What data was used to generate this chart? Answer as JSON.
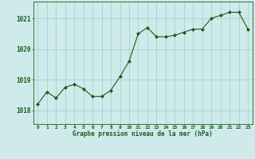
{
  "x": [
    0,
    1,
    2,
    3,
    4,
    5,
    6,
    7,
    8,
    9,
    10,
    11,
    12,
    13,
    14,
    15,
    16,
    17,
    18,
    19,
    20,
    21,
    22,
    23
  ],
  "y": [
    1018.2,
    1018.6,
    1018.4,
    1018.75,
    1018.85,
    1018.7,
    1018.45,
    1018.45,
    1018.65,
    1019.1,
    1019.6,
    1020.5,
    1020.7,
    1020.4,
    1020.4,
    1020.45,
    1020.55,
    1020.65,
    1020.65,
    1021.0,
    1021.1,
    1021.2,
    1021.2,
    1020.65
  ],
  "line_color": "#1a5c1a",
  "marker_color": "#1a5c1a",
  "bg_color": "#ceeaea",
  "grid_color": "#9ecece",
  "xlabel": "Graphe pression niveau de la mer (hPa)",
  "xlabel_color": "#1a5c1a",
  "tick_color": "#1a5c1a",
  "yticks": [
    1018,
    1019,
    1020,
    1021
  ],
  "xtick_labels": [
    "0",
    "1",
    "2",
    "3",
    "4",
    "5",
    "6",
    "7",
    "8",
    "9",
    "10",
    "11",
    "12",
    "13",
    "14",
    "15",
    "16",
    "17",
    "18",
    "19",
    "20",
    "21",
    "22",
    "23"
  ],
  "ylim": [
    1017.55,
    1021.55
  ],
  "xlim": [
    -0.5,
    23.5
  ],
  "figsize": [
    3.2,
    2.0
  ],
  "dpi": 100
}
